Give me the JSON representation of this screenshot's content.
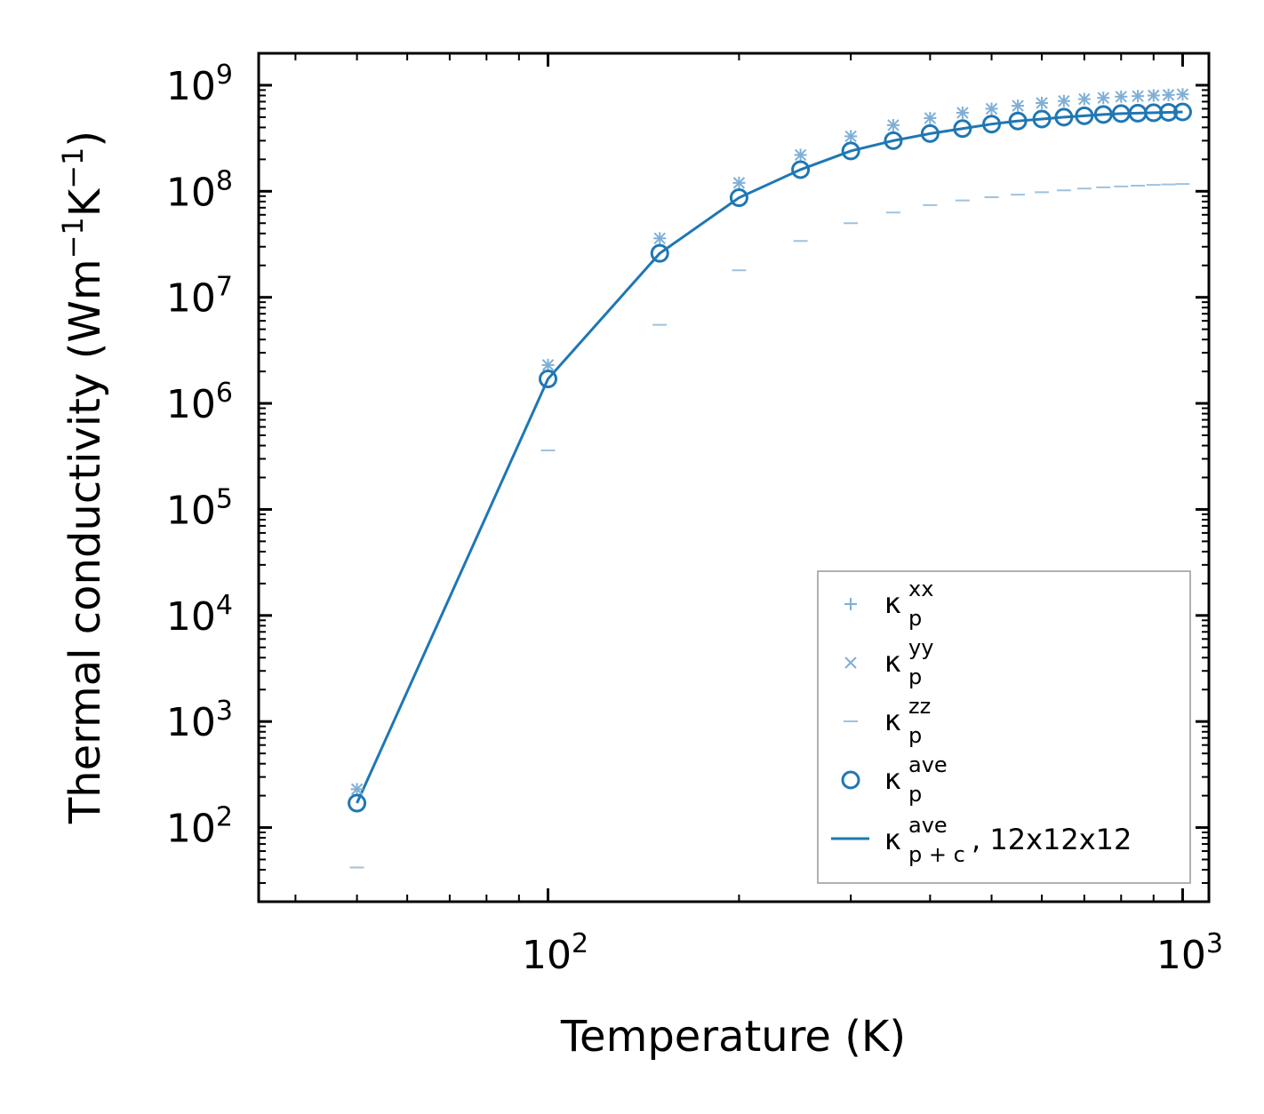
{
  "chart_data": {
    "type": "scatter",
    "xscale": "log",
    "yscale": "log",
    "xlim": [
      35,
      1100
    ],
    "ylim": [
      20,
      2000000000
    ],
    "xlabel": "Temperature (K)",
    "ylabel": {
      "main": "Thermal conductivity (Wm",
      "sup1": "−1",
      "mid": "K",
      "sup2": "−1",
      "end": ")"
    },
    "x_ticks": [
      {
        "base": "10",
        "exp": "2",
        "value": 100
      },
      {
        "base": "10",
        "exp": "3",
        "value": 1000
      }
    ],
    "y_ticks": [
      {
        "base": "10",
        "exp": "2",
        "value": 100
      },
      {
        "base": "10",
        "exp": "3",
        "value": 1000
      },
      {
        "base": "10",
        "exp": "4",
        "value": 10000
      },
      {
        "base": "10",
        "exp": "5",
        "value": 100000
      },
      {
        "base": "10",
        "exp": "6",
        "value": 1000000
      },
      {
        "base": "10",
        "exp": "7",
        "value": 10000000
      },
      {
        "base": "10",
        "exp": "8",
        "value": 100000000
      },
      {
        "base": "10",
        "exp": "9",
        "value": 1000000000
      }
    ],
    "x": [
      50,
      100,
      150,
      200,
      250,
      300,
      350,
      400,
      450,
      500,
      550,
      600,
      650,
      700,
      750,
      800,
      850,
      900,
      950,
      1000
    ],
    "series": [
      {
        "key": "xx",
        "name": {
          "base": "κ",
          "sub": "p",
          "sup": "xx"
        },
        "marker": "plus",
        "color": "#7fafd6",
        "values": [
          230,
          2300000,
          36000000,
          120000000,
          220000000,
          330000000,
          420000000,
          490000000,
          550000000,
          600000000,
          640000000,
          680000000,
          710000000,
          740000000,
          760000000,
          780000000,
          790000000,
          800000000,
          810000000,
          820000000
        ]
      },
      {
        "key": "yy",
        "name": {
          "base": "κ",
          "sub": "p",
          "sup": "yy"
        },
        "marker": "cross",
        "color": "#7fafd6",
        "values": [
          230,
          2300000,
          36000000,
          120000000,
          220000000,
          330000000,
          420000000,
          490000000,
          550000000,
          600000000,
          640000000,
          680000000,
          710000000,
          740000000,
          760000000,
          780000000,
          790000000,
          800000000,
          810000000,
          820000000
        ]
      },
      {
        "key": "zz",
        "name": {
          "base": "κ",
          "sub": "p",
          "sup": "zz"
        },
        "marker": "dash",
        "color": "#9fc2de",
        "values": [
          42,
          360000,
          5500000,
          18000000,
          34000000,
          50000000,
          63000000,
          74000000,
          82000000,
          88000000,
          93000000,
          98000000,
          102000000,
          106000000,
          109000000,
          111000000,
          113000000,
          115000000,
          116000000,
          117000000
        ]
      },
      {
        "key": "ave",
        "name": {
          "base": "κ",
          "sub": "p",
          "sup": "ave"
        },
        "marker": "circle",
        "color": "#1f77b4",
        "values": [
          170,
          1700000,
          26000000,
          87000000,
          160000000,
          240000000,
          300000000,
          350000000,
          390000000,
          430000000,
          460000000,
          480000000,
          500000000,
          515000000,
          530000000,
          540000000,
          545000000,
          550000000,
          555000000,
          560000000
        ]
      },
      {
        "key": "fit",
        "name": {
          "base": "κ",
          "sub": "p + c",
          "sup": "ave",
          "suffix": ", 12x12x12"
        },
        "marker": "line",
        "color": "#1f77b4",
        "values": [
          170,
          1700000,
          26000000,
          87000000,
          160000000,
          240000000,
          300000000,
          350000000,
          390000000,
          430000000,
          460000000,
          480000000,
          500000000,
          515000000,
          530000000,
          540000000,
          545000000,
          550000000,
          555000000,
          560000000
        ]
      }
    ],
    "legend_position": "lower-right"
  }
}
